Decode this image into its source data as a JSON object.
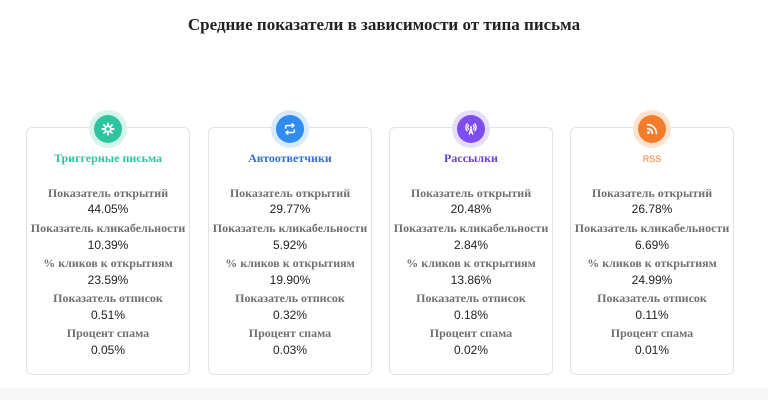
{
  "page": {
    "title": "Средние показатели в зависимости от типа письма"
  },
  "metric_labels": {
    "open_rate": "Показатель открытий",
    "click_rate": "Показатель кликабельности",
    "click_to_open": "% кликов к открытиям",
    "unsubscribe_rate": "Показатель отписок",
    "spam_rate": "Процент спама"
  },
  "cards": [
    {
      "title": "Триггерные письма",
      "icon": "gear-icon",
      "accent": "#2ec4a0",
      "halo": "#d6f4ec",
      "title_color": "#2ec4a0",
      "open_rate": "44.05%",
      "click_rate": "10.39%",
      "click_to_open": "23.59%",
      "unsubscribe_rate": "0.51%",
      "spam_rate": "0.05%"
    },
    {
      "title": "Автоответчики",
      "icon": "repeat-icon",
      "accent": "#2f8cf0",
      "halo": "#d8e9fc",
      "title_color": "#2f6fd6",
      "open_rate": "29.77%",
      "click_rate": "5.92%",
      "click_to_open": "19.90%",
      "unsubscribe_rate": "0.32%",
      "spam_rate": "0.03%"
    },
    {
      "title": "Рассылки",
      "icon": "broadcast-icon",
      "accent": "#7d4df0",
      "halo": "#e6dcfc",
      "title_color": "#6a3fd6",
      "open_rate": "20.48%",
      "click_rate": "2.84%",
      "click_to_open": "13.86%",
      "unsubscribe_rate": "0.18%",
      "spam_rate": "0.02%"
    },
    {
      "title": "RSS",
      "icon": "rss-icon",
      "accent": "#f47b2a",
      "halo": "#fde2cf",
      "title_color": "#f47b2a",
      "open_rate": "26.78%",
      "click_rate": "6.69%",
      "click_to_open": "24.99%",
      "unsubscribe_rate": "0.11%",
      "spam_rate": "0.01%"
    }
  ]
}
